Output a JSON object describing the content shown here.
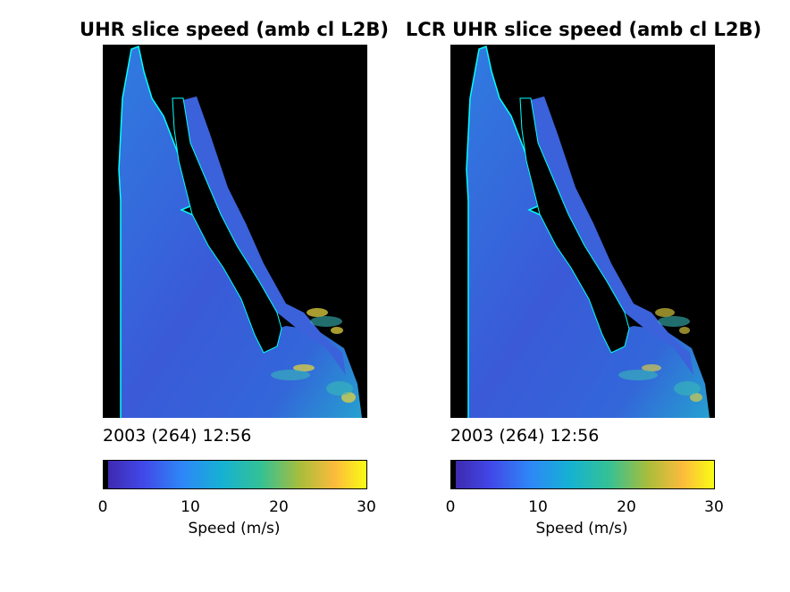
{
  "panels": [
    {
      "title": "UHR slice speed (amb cl L2B)",
      "timestamp": "2003 (264) 12:56",
      "colorbar": {
        "label": "Speed (m/s)",
        "ticks": [
          "0",
          "10",
          "20",
          "30"
        ]
      }
    },
    {
      "title": "LCR UHR slice speed (amb cl L2B)",
      "timestamp": "2003 (264) 12:56",
      "colorbar": {
        "label": "Speed (m/s)",
        "ticks": [
          "0",
          "10",
          "20",
          "30"
        ]
      }
    }
  ],
  "chart_data": [
    {
      "type": "heatmap",
      "title": "UHR slice speed (amb cl L2B)",
      "annotation": "2003 (264) 12:56",
      "colorbar_label": "Speed (m/s)",
      "clim": [
        0,
        30
      ],
      "colorbar_ticks": [
        0,
        10,
        20,
        30
      ],
      "colormap": "parula",
      "land_color": "#000000",
      "coast_color": "#00ffff",
      "typical_speed_range": [
        4,
        12
      ],
      "max_speed_observed": 30
    },
    {
      "type": "heatmap",
      "title": "LCR UHR slice speed (amb cl L2B)",
      "annotation": "2003 (264) 12:56",
      "colorbar_label": "Speed (m/s)",
      "clim": [
        0,
        30
      ],
      "colorbar_ticks": [
        0,
        10,
        20,
        30
      ],
      "colormap": "parula",
      "land_color": "#000000",
      "coast_color": "#00ffff",
      "typical_speed_range": [
        4,
        12
      ],
      "max_speed_observed": 30
    }
  ]
}
